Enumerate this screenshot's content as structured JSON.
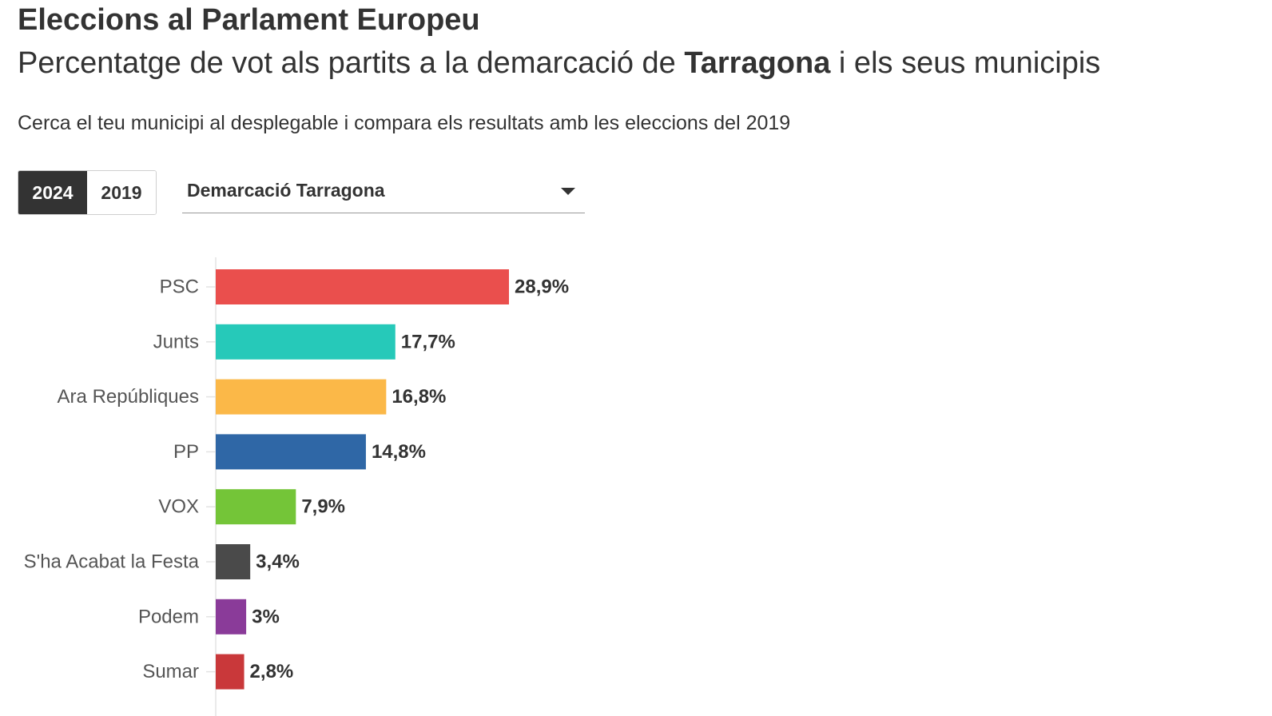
{
  "header": {
    "title": "Eleccions al Parlament Europeu",
    "subtitle_prefix": "Percentatge de vot als partits a la demarcació de ",
    "subtitle_bold": "Tarragona",
    "subtitle_suffix": " i els seus municipis",
    "instructions": "Cerca el teu municipi al desplegable i compara els resultats amb les eleccions del 2019"
  },
  "controls": {
    "years": [
      "2024",
      "2019"
    ],
    "selected_year": "2024",
    "dropdown_value": "Demarcació Tarragona"
  },
  "chart_data": {
    "type": "bar",
    "orientation": "horizontal",
    "title": "",
    "xlabel": "",
    "ylabel": "",
    "xlim": [
      0,
      40
    ],
    "grid": false,
    "categories": [
      "PSC",
      "Junts",
      "Ara Repúbliques",
      "PP",
      "VOX",
      "S'ha Acabat la Festa",
      "Podem",
      "Sumar"
    ],
    "values": [
      28.9,
      17.7,
      16.8,
      14.8,
      7.9,
      3.4,
      3,
      2.8
    ],
    "value_labels": [
      "28,9%",
      "17,7%",
      "16,8%",
      "14,8%",
      "7,9%",
      "3,4%",
      "3%",
      "2,8%"
    ],
    "colors": [
      "#ea4f4d",
      "#26c9b9",
      "#fbb848",
      "#2f67a6",
      "#74c538",
      "#4a4a4a",
      "#8a3b99",
      "#c9383a"
    ]
  }
}
